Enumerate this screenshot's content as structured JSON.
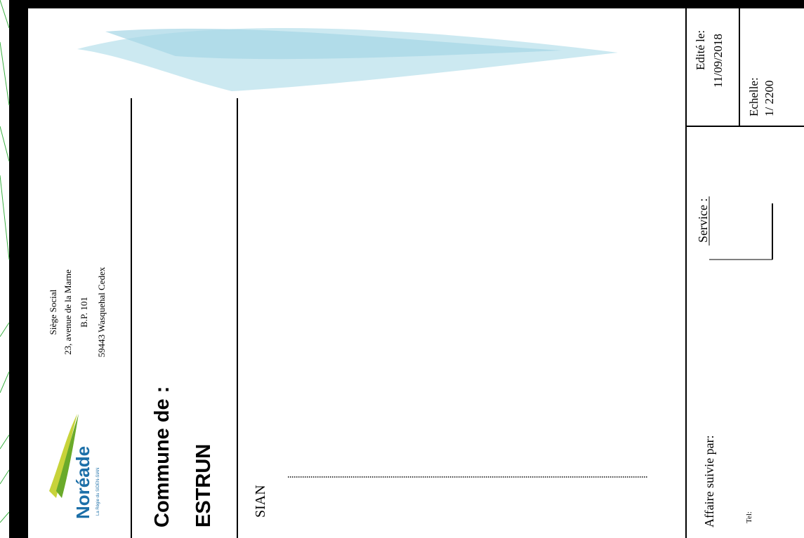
{
  "header": {
    "logo": {
      "name": "Noréade",
      "tagline": "La Régie du SIDEN-SIAN"
    },
    "address": [
      "Siège Social",
      "23, avenue de la Marne",
      "B.P. 101",
      "59443 Wasquehal Cedex"
    ]
  },
  "commune": {
    "label": "Commune de :",
    "name": "ESTRUN"
  },
  "network": {
    "label": "SIAN"
  },
  "footer": {
    "followed_by": "Affaire suivie par:",
    "tel": "Tel:",
    "service": "Service :",
    "edited_label": "Edité le:",
    "edited_date": "11/09/2018",
    "scale_label": "Echelle:",
    "scale_value": "1/ 2200"
  }
}
